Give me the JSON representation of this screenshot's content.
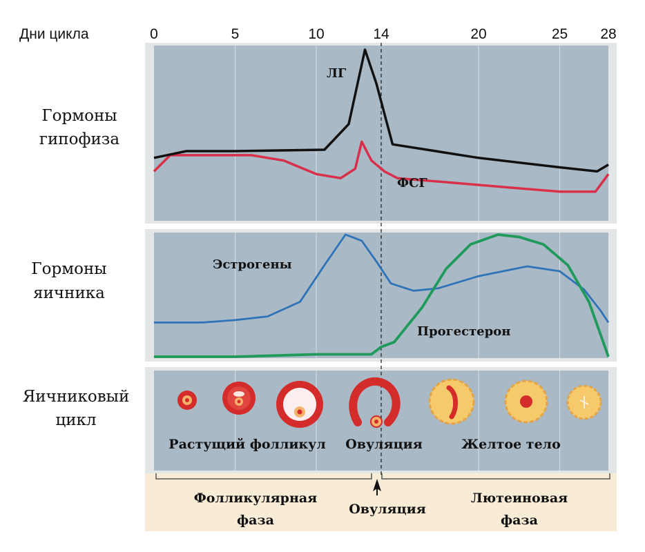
{
  "axis": {
    "title": "Дни цикла",
    "ticks": [
      {
        "day": 0,
        "label": "0"
      },
      {
        "day": 5,
        "label": "5"
      },
      {
        "day": 10,
        "label": "10"
      },
      {
        "day": 14,
        "label": "14"
      },
      {
        "day": 20,
        "label": "20"
      },
      {
        "day": 25,
        "label": "25"
      },
      {
        "day": 28,
        "label": "28"
      }
    ],
    "ovulation_day": 14
  },
  "rows": {
    "pituitary": {
      "line1": "Гормоны",
      "line2": "гипофиза"
    },
    "ovarian": {
      "line1": "Гормоны",
      "line2": "яичника"
    },
    "cycle": {
      "line1": "Яичниковый",
      "line2": "цикл"
    }
  },
  "labels": {
    "lh": "ЛГ",
    "fsh": "ФСГ",
    "estrogen": "Эстрогены",
    "progesterone": "Прогестерон",
    "growing_follicle": "Растущий фолликул",
    "ovulation": "Овуляция",
    "corpus_luteum": "Желтое тело"
  },
  "phases": {
    "follicular": {
      "line1": "Фолликулярная",
      "line2": "фаза"
    },
    "ovulation": "Овуляция",
    "luteal": {
      "line1": "Лютеиновая",
      "line2": "фаза"
    }
  },
  "colors": {
    "panel": "#a9b9c6",
    "lh": "#111111",
    "fsh": "#d8304a",
    "estrogen": "#2e73b8",
    "progesterone": "#1f9a5a",
    "follicle": "#d42b2b",
    "corpus_luteum": "#f6c96a",
    "phase_band": "#f8ecd6"
  },
  "chart_data": [
    {
      "type": "line",
      "panel": "pituitary",
      "series": [
        {
          "name": "ЛГ",
          "points": [
            [
              0,
              0.2
            ],
            [
              2,
              0.25
            ],
            [
              5,
              0.25
            ],
            [
              10.5,
              0.26
            ],
            [
              12,
              0.45
            ],
            [
              13,
              1.0
            ],
            [
              13.7,
              0.75
            ],
            [
              14.7,
              0.3
            ],
            [
              20,
              0.2
            ],
            [
              25,
              0.13
            ],
            [
              27.3,
              0.1
            ],
            [
              28,
              0.15
            ]
          ]
        },
        {
          "name": "ФСГ",
          "points": [
            [
              0,
              0.1
            ],
            [
              1,
              0.22
            ],
            [
              3,
              0.22
            ],
            [
              6,
              0.22
            ],
            [
              8,
              0.18
            ],
            [
              10,
              0.08
            ],
            [
              11.5,
              0.05
            ],
            [
              12.4,
              0.12
            ],
            [
              12.8,
              0.32
            ],
            [
              13.4,
              0.18
            ],
            [
              14.2,
              0.1
            ],
            [
              15,
              0.05
            ],
            [
              20,
              0.0
            ],
            [
              25,
              -0.05
            ],
            [
              27.2,
              -0.05
            ],
            [
              28,
              0.08
            ]
          ]
        }
      ]
    },
    {
      "type": "line",
      "panel": "ovarian",
      "series": [
        {
          "name": "Эстрогены",
          "points": [
            [
              0,
              0.28
            ],
            [
              3,
              0.28
            ],
            [
              5,
              0.3
            ],
            [
              7,
              0.33
            ],
            [
              9,
              0.45
            ],
            [
              10.5,
              0.75
            ],
            [
              11.8,
              1.0
            ],
            [
              12.8,
              0.95
            ],
            [
              13.7,
              0.78
            ],
            [
              14.6,
              0.6
            ],
            [
              16,
              0.54
            ],
            [
              17.5,
              0.56
            ],
            [
              20,
              0.66
            ],
            [
              23,
              0.74
            ],
            [
              25,
              0.7
            ],
            [
              26.5,
              0.55
            ],
            [
              27.5,
              0.38
            ],
            [
              28,
              0.28
            ]
          ]
        },
        {
          "name": "Прогестерон",
          "points": [
            [
              0,
              0.0
            ],
            [
              5,
              0.0
            ],
            [
              10,
              0.02
            ],
            [
              13.4,
              0.02
            ],
            [
              14,
              0.08
            ],
            [
              14.8,
              0.12
            ],
            [
              16.5,
              0.4
            ],
            [
              18,
              0.72
            ],
            [
              19.5,
              0.92
            ],
            [
              21.2,
              1.0
            ],
            [
              22.5,
              0.98
            ],
            [
              24,
              0.92
            ],
            [
              25.5,
              0.75
            ],
            [
              26.8,
              0.45
            ],
            [
              27.6,
              0.15
            ],
            [
              28,
              0.0
            ]
          ]
        }
      ]
    }
  ]
}
